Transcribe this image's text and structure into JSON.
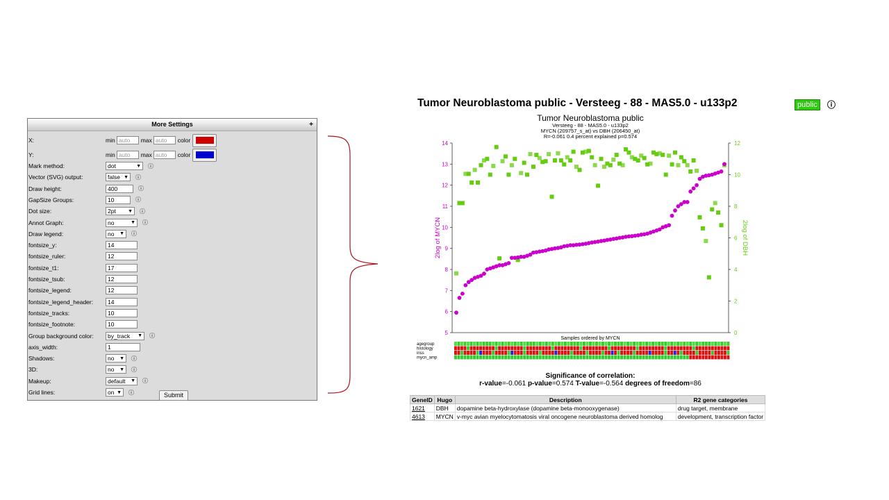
{
  "settings": {
    "header": "More Settings",
    "expand_glyph": "+",
    "x_label": "X:",
    "y_label": "Y:",
    "min_label": "min",
    "max_label": "max",
    "color_label": "color",
    "auto_placeholder": "auto",
    "x_color": "#cc0000",
    "y_color": "#0000cc",
    "rows": [
      {
        "label": "Mark method:",
        "type": "select",
        "value": "dot",
        "w": 54
      },
      {
        "label": "Vector (SVG) output:",
        "type": "select",
        "value": "false",
        "w": 36
      },
      {
        "label": "Draw height:",
        "type": "text",
        "value": "400",
        "w": 40
      },
      {
        "label": "GapSize Groups:",
        "type": "text",
        "value": "10",
        "w": 36
      },
      {
        "label": "Dot size:",
        "type": "select",
        "value": "2pt",
        "w": 42
      },
      {
        "label": "Annot Graph:",
        "type": "select",
        "value": "no",
        "w": 46
      },
      {
        "label": "Draw legend:",
        "type": "select",
        "value": "no",
        "w": 30
      },
      {
        "label": "fontsize_y:",
        "type": "text",
        "value": "14",
        "w": 46
      },
      {
        "label": "fontsize_ruler:",
        "type": "text",
        "value": "12",
        "w": 46
      },
      {
        "label": "fontsize_t1:",
        "type": "text",
        "value": "17",
        "w": 46
      },
      {
        "label": "fontsize_tsub:",
        "type": "text",
        "value": "12",
        "w": 46
      },
      {
        "label": "fontsize_legend:",
        "type": "text",
        "value": "12",
        "w": 46
      },
      {
        "label": "fontsize_legend_header:",
        "type": "text",
        "value": "14",
        "w": 46
      },
      {
        "label": "fontsize_tracks:",
        "type": "text",
        "value": "10",
        "w": 46
      },
      {
        "label": "fontsize_footnote:",
        "type": "text",
        "value": "10",
        "w": 46
      },
      {
        "label": "Group background color:",
        "type": "select",
        "value": "by_track",
        "w": 56
      },
      {
        "label": "axis_width:",
        "type": "text",
        "value": "1",
        "w": 50
      },
      {
        "label": "Shadows:",
        "type": "select",
        "value": "no",
        "w": 30
      },
      {
        "label": "3D:",
        "type": "select",
        "value": "no",
        "w": 30
      },
      {
        "label": "Makeup:",
        "type": "select",
        "value": "default",
        "w": 46
      },
      {
        "label": "Grid lines:",
        "type": "select",
        "value": "on",
        "w": 26
      }
    ],
    "submit_label": "Submit"
  },
  "header": {
    "title": "Tumor Neuroblastoma public - Versteeg - 88 - MAS5.0 - u133p2",
    "badge": "public",
    "info_glyph": "ⓘ"
  },
  "chart_data": {
    "type": "scatter",
    "title": "Tumor Neuroblastoma public",
    "subtitle_lines": [
      "Versteeg - 88 - MAS5.0 - u133p2",
      "MYCN (209757_s_at) vs DBH (206450_at)",
      "R=-0.061 0.4 percent explained p=0.574"
    ],
    "ylabel_left": "2log of MYCN",
    "ylabel_right": "2log of DBH",
    "xlabel": "Samples ordered by MYCN",
    "ylim_left": [
      5,
      14
    ],
    "ylim_right": [
      0,
      12
    ],
    "left_ticks": [
      "5",
      "6",
      "7",
      "8",
      "9",
      "10",
      "11",
      "12",
      "13",
      "14"
    ],
    "right_ticks": [
      "0",
      "2",
      "4",
      "6",
      "8",
      "10",
      "12"
    ],
    "mycn_color": "#cc00cc",
    "dbh_color": "#66cc11",
    "mycn": [
      5.95,
      6.65,
      6.85,
      7.25,
      7.4,
      7.5,
      7.6,
      7.65,
      7.7,
      7.8,
      8.0,
      8.05,
      8.1,
      8.15,
      8.2,
      8.2,
      8.25,
      8.3,
      8.55,
      8.55,
      8.57,
      8.6,
      8.6,
      8.65,
      8.7,
      8.8,
      8.82,
      8.85,
      8.87,
      8.9,
      8.95,
      8.97,
      9.0,
      9.02,
      9.05,
      9.1,
      9.12,
      9.15,
      9.15,
      9.17,
      9.18,
      9.2,
      9.22,
      9.25,
      9.28,
      9.3,
      9.32,
      9.35,
      9.37,
      9.4,
      9.42,
      9.45,
      9.47,
      9.5,
      9.52,
      9.55,
      9.57,
      9.58,
      9.6,
      9.62,
      9.65,
      9.67,
      9.7,
      9.75,
      9.8,
      9.85,
      9.9,
      10.0,
      10.05,
      10.1,
      10.55,
      10.8,
      11.0,
      11.1,
      11.2,
      11.2,
      11.7,
      11.85,
      12.0,
      12.3,
      12.4,
      12.45,
      12.47,
      12.5,
      12.55,
      12.6,
      12.65,
      13.0
    ],
    "dbh": [
      3.75,
      8.2,
      0.15,
      10.05,
      10.05,
      9.5,
      10.3,
      9.5,
      10.6,
      10.9,
      11.0,
      10.0,
      10.55,
      11.75,
      10.75,
      10.85,
      11.15,
      10.0,
      10.6,
      11.0,
      10.5,
      10.1,
      10.75,
      10.0,
      11.3,
      10.5,
      11.25,
      11.05,
      10.8,
      10.85,
      11.3,
      8.6,
      10.9,
      11.35,
      10.9,
      10.65,
      11.1,
      10.9,
      11.45,
      10.5,
      10.3,
      11.4,
      11.45,
      11.5,
      11.1,
      10.6,
      9.3,
      11.0,
      10.5,
      10.7,
      10.6,
      10.95,
      11.25,
      10.7,
      10.6,
      11.6,
      11.4,
      11.1,
      11.0,
      10.9,
      11.2,
      11.05,
      10.65,
      10.7,
      11.4,
      11.3,
      11.35,
      11.25,
      10.0,
      11.2,
      10.65,
      11.4,
      10.6,
      11.1,
      10.85,
      10.6,
      10.2,
      10.9,
      10.25,
      9.8,
      10.3,
      10.35,
      10.45,
      10.1,
      10.4,
      10.5,
      10.8,
      10.6
    ],
    "dbh_outliers": [
      {
        "i": 2,
        "v": 8.2
      },
      {
        "i": 14,
        "v": 4.7
      },
      {
        "i": 20,
        "v": 4.6
      },
      {
        "i": 79,
        "v": 7.3
      },
      {
        "i": 80,
        "v": 6.6
      },
      {
        "i": 81,
        "v": 5.8
      },
      {
        "i": 82,
        "v": 3.5
      },
      {
        "i": 83,
        "v": 7.8
      },
      {
        "i": 84,
        "v": 8.2
      },
      {
        "i": 85,
        "v": 7.6
      },
      {
        "i": 86,
        "v": 6.8
      }
    ],
    "tracks": [
      "agegroup",
      "histology",
      "inss",
      "mycn_amp"
    ]
  },
  "significance": {
    "title": "Significance of correlation:",
    "r_label": "r-value",
    "r_value": "=-0.061",
    "p_label": "p-value",
    "p_value": "=0.574",
    "t_label": "T-value",
    "t_value": "=-0.564",
    "df_label": "degrees of freedom",
    "df_value": "=86"
  },
  "genes": {
    "headers": [
      "GeneID",
      "Hugo",
      "Description",
      "R2 gene categories"
    ],
    "rows": [
      {
        "id": "1621",
        "hugo": "DBH",
        "desc": "dopamine beta-hydroxylase (dopamine beta-monooxygenase)",
        "cat": "drug target, membrane"
      },
      {
        "id": "4613",
        "hugo": "MYCN",
        "desc": "v-myc avian myelocytomatosis viral oncogene neuroblastoma derived homolog",
        "cat": "development, transcription factor"
      }
    ]
  }
}
